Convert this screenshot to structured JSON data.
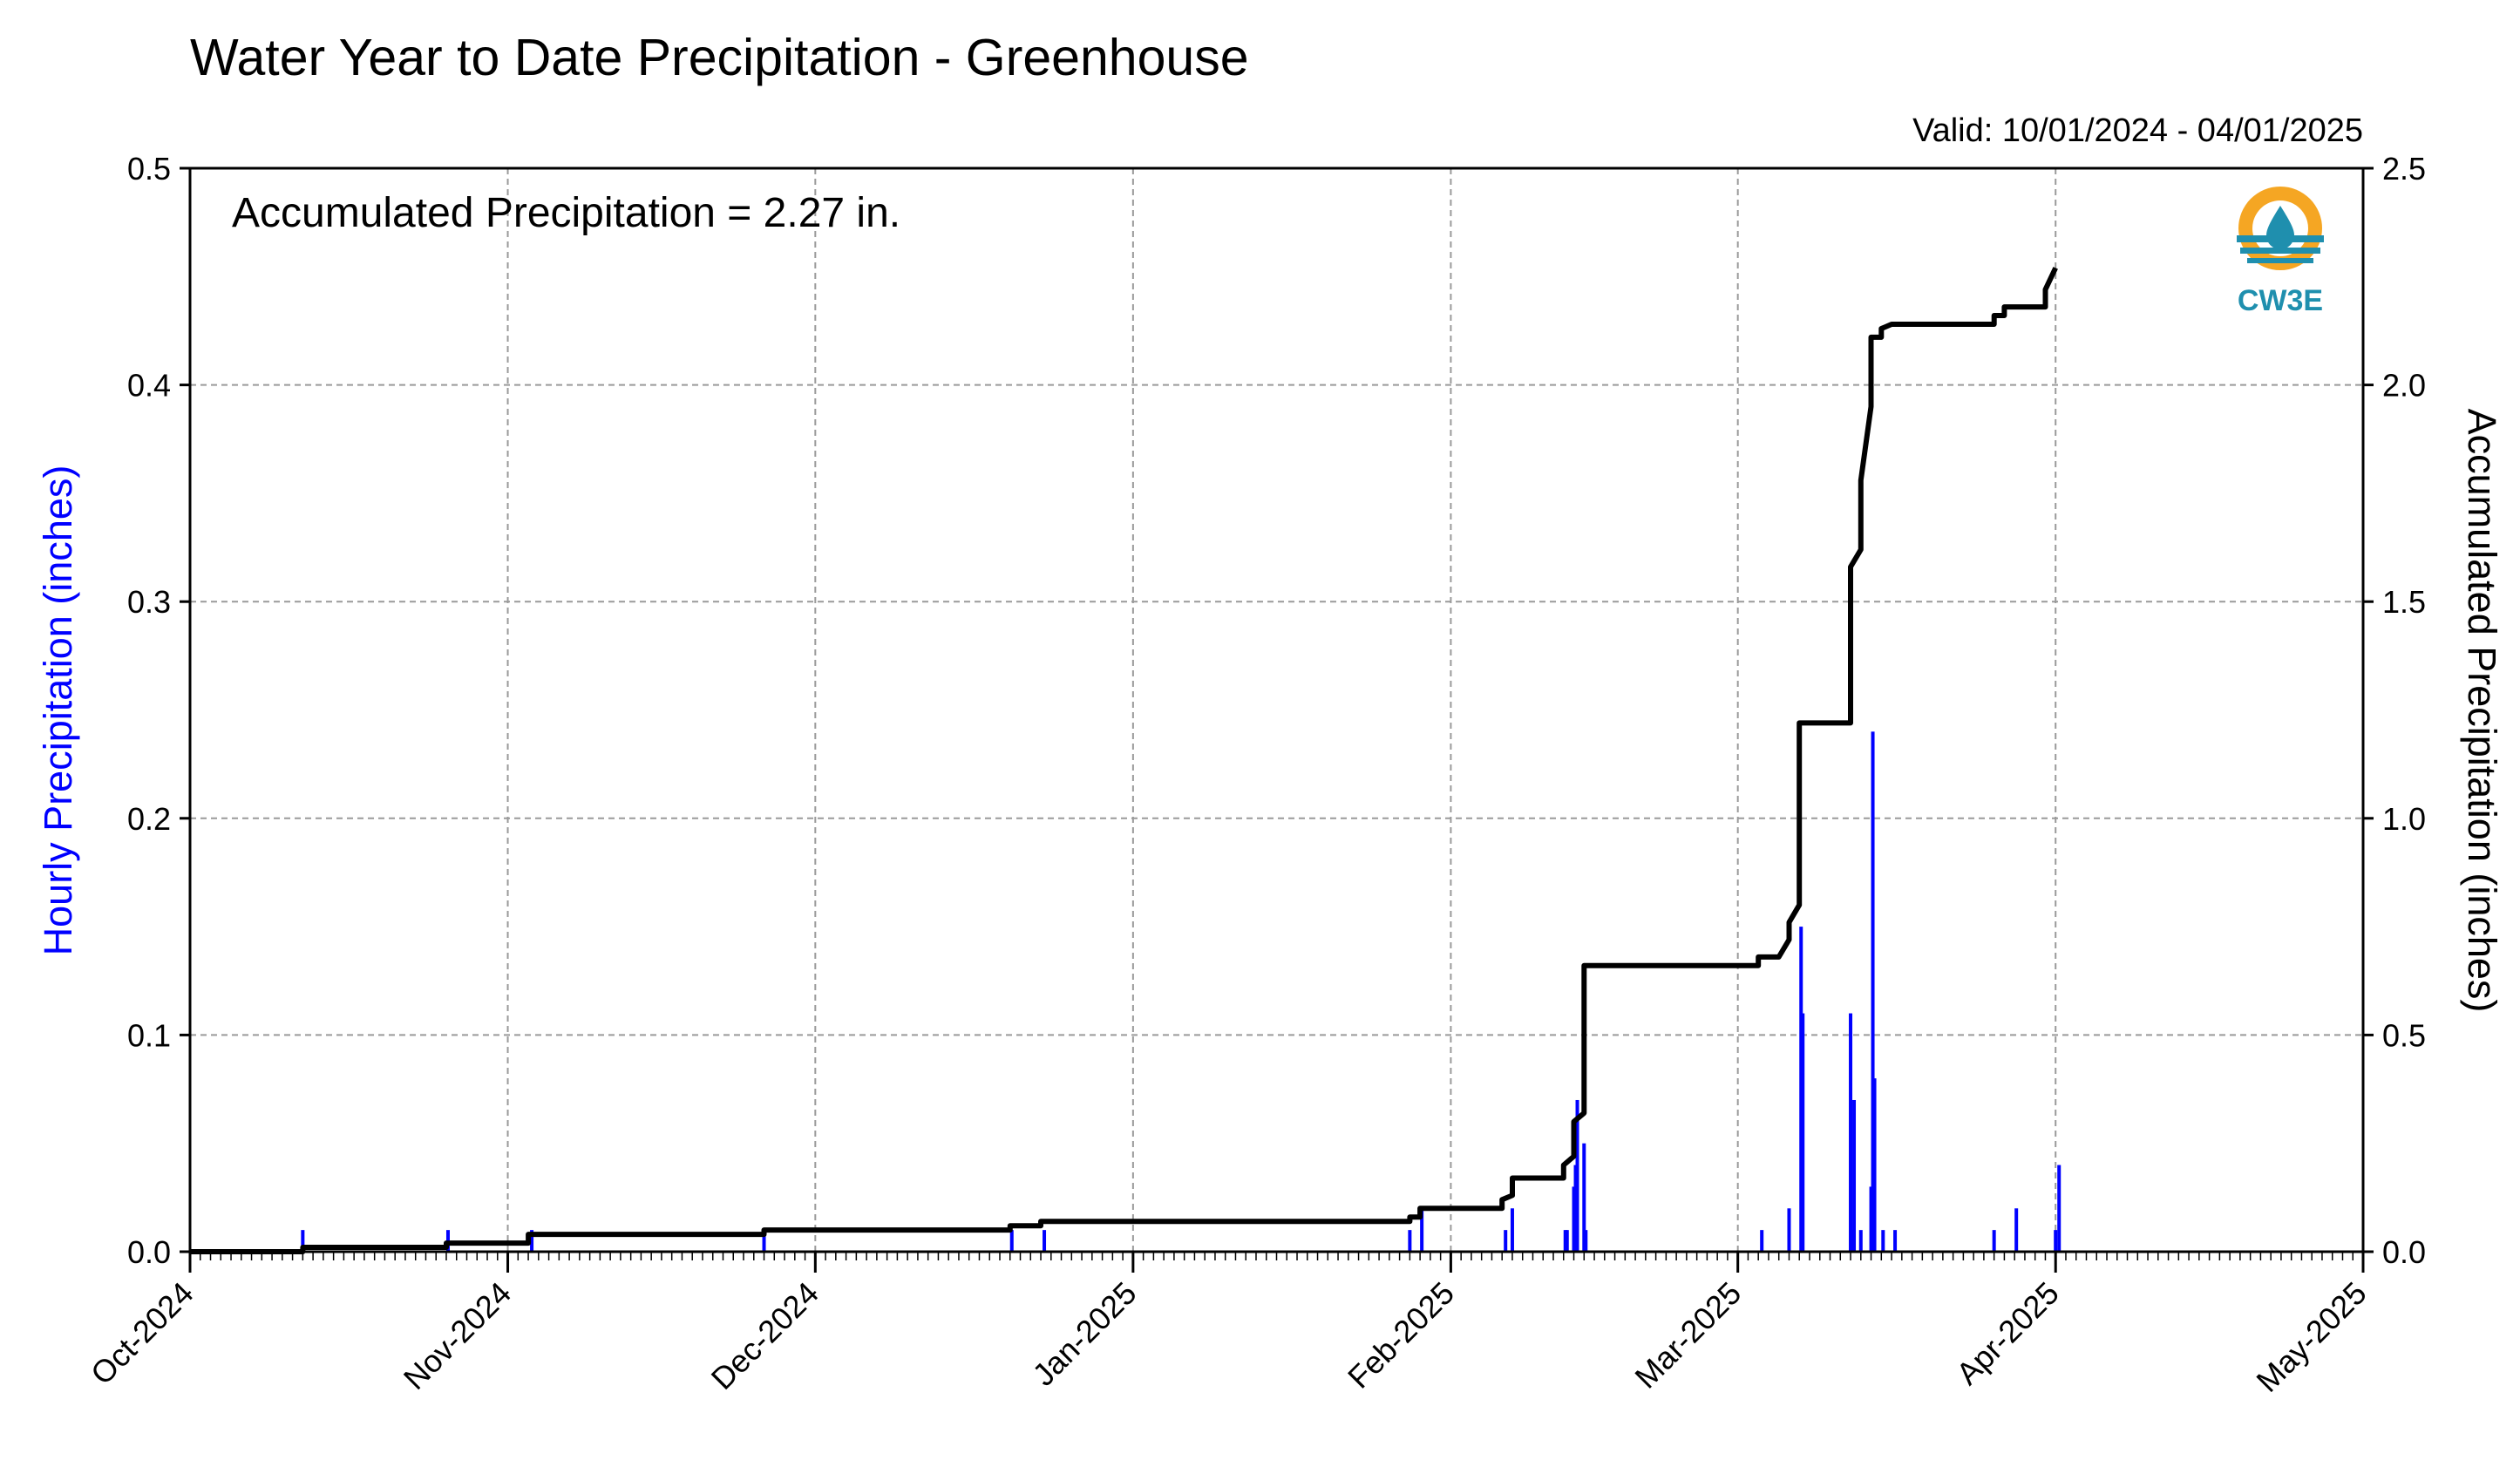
{
  "title": "Water Year to Date Precipitation - Greenhouse",
  "valid_text": "Valid: 10/01/2024 - 04/01/2025",
  "annotation": "Accumulated Precipitation = 2.27 in.",
  "logo": {
    "text": "CW3E",
    "icon": "cw3e-logo-icon",
    "colors": {
      "orange": "#F5A623",
      "teal": "#1F8FAE"
    }
  },
  "colors": {
    "hourly": "#0000FF",
    "accumulated": "#000000",
    "grid": "#9a9a9a"
  },
  "chart_data": {
    "type": "bar",
    "title": "Water Year to Date Precipitation - Greenhouse",
    "xlabel": "",
    "ylabel_left": "Hourly Precipitation (inches)",
    "ylabel_right": "Accumulated Precipitation (inches)",
    "grid": true,
    "x_range": [
      "2024-10-01",
      "2025-05-01"
    ],
    "x_ticks": [
      "Oct-2024",
      "Nov-2024",
      "Dec-2024",
      "Jan-2025",
      "Feb-2025",
      "Mar-2025",
      "Apr-2025",
      "May-2025"
    ],
    "x_tick_dates": [
      "2024-10-01",
      "2024-11-01",
      "2024-12-01",
      "2025-01-01",
      "2025-02-01",
      "2025-03-01",
      "2025-04-01",
      "2025-05-01"
    ],
    "ylim_left": [
      0,
      0.5
    ],
    "yticks_left": [
      "0.0",
      "0.1",
      "0.2",
      "0.3",
      "0.4",
      "0.5"
    ],
    "ylim_right": [
      0,
      2.5
    ],
    "yticks_right": [
      "0.0",
      "0.5",
      "1.0",
      "1.5",
      "2.0",
      "2.5"
    ],
    "series": [
      {
        "name": "Hourly Precipitation (inches)",
        "type": "bar",
        "points": [
          [
            "2024-10-12",
            0.01
          ],
          [
            "2024-10-26",
            0.01
          ],
          [
            "2024-11-03",
            0.01
          ],
          [
            "2024-11-26",
            0.01
          ],
          [
            "2024-12-20",
            0.01
          ],
          [
            "2024-12-23",
            0.01
          ],
          [
            "2025-01-28",
            0.01
          ],
          [
            "2025-01-29",
            0.02
          ],
          [
            "2025-02-06",
            0.01
          ],
          [
            "2025-02-07",
            0.02
          ],
          [
            "2025-02-12",
            0.01
          ],
          [
            "2025-02-12",
            0.01
          ],
          [
            "2025-02-13",
            0.03
          ],
          [
            "2025-02-13",
            0.04
          ],
          [
            "2025-02-13",
            0.07
          ],
          [
            "2025-02-14",
            0.05
          ],
          [
            "2025-02-14",
            0.01
          ],
          [
            "2025-03-03",
            0.01
          ],
          [
            "2025-03-06",
            0.02
          ],
          [
            "2025-03-07",
            0.15
          ],
          [
            "2025-03-07",
            0.11
          ],
          [
            "2025-03-12",
            0.11
          ],
          [
            "2025-03-12",
            0.01
          ],
          [
            "2025-03-12",
            0.07
          ],
          [
            "2025-03-13",
            0.01
          ],
          [
            "2025-03-14",
            0.24
          ],
          [
            "2025-03-14",
            0.08
          ],
          [
            "2025-03-14",
            0.03
          ],
          [
            "2025-03-15",
            0.01
          ],
          [
            "2025-03-16",
            0.01
          ],
          [
            "2025-03-26",
            0.01
          ],
          [
            "2025-03-28",
            0.02
          ],
          [
            "2025-04-01",
            0.04
          ],
          [
            "2025-04-01",
            0.01
          ]
        ]
      },
      {
        "name": "Accumulated Precipitation (inches)",
        "type": "line",
        "points": [
          [
            "2024-10-01",
            0.0
          ],
          [
            "2024-10-12",
            0.0
          ],
          [
            "2024-10-12",
            0.01
          ],
          [
            "2024-10-26",
            0.01
          ],
          [
            "2024-10-26",
            0.02
          ],
          [
            "2024-11-03",
            0.02
          ],
          [
            "2024-11-03",
            0.04
          ],
          [
            "2024-11-26",
            0.04
          ],
          [
            "2024-11-26",
            0.05
          ],
          [
            "2024-12-20",
            0.05
          ],
          [
            "2024-12-20",
            0.06
          ],
          [
            "2024-12-23",
            0.06
          ],
          [
            "2024-12-23",
            0.07
          ],
          [
            "2025-01-28",
            0.07
          ],
          [
            "2025-01-28",
            0.08
          ],
          [
            "2025-01-29",
            0.08
          ],
          [
            "2025-01-29",
            0.1
          ],
          [
            "2025-02-06",
            0.1
          ],
          [
            "2025-02-06",
            0.12
          ],
          [
            "2025-02-07",
            0.13
          ],
          [
            "2025-02-07",
            0.17
          ],
          [
            "2025-02-12",
            0.17
          ],
          [
            "2025-02-12",
            0.2
          ],
          [
            "2025-02-13",
            0.22
          ],
          [
            "2025-02-13",
            0.3
          ],
          [
            "2025-02-14",
            0.32
          ],
          [
            "2025-02-14",
            0.66
          ],
          [
            "2025-03-03",
            0.66
          ],
          [
            "2025-03-03",
            0.68
          ],
          [
            "2025-03-05",
            0.68
          ],
          [
            "2025-03-06",
            0.72
          ],
          [
            "2025-03-06",
            0.76
          ],
          [
            "2025-03-07",
            0.8
          ],
          [
            "2025-03-07",
            1.22
          ],
          [
            "2025-03-12",
            1.22
          ],
          [
            "2025-03-12",
            1.4
          ],
          [
            "2025-03-12",
            1.58
          ],
          [
            "2025-03-13",
            1.62
          ],
          [
            "2025-03-13",
            1.78
          ],
          [
            "2025-03-14",
            1.95
          ],
          [
            "2025-03-14",
            2.11
          ],
          [
            "2025-03-15",
            2.11
          ],
          [
            "2025-03-15",
            2.13
          ],
          [
            "2025-03-16",
            2.14
          ],
          [
            "2025-03-26",
            2.14
          ],
          [
            "2025-03-26",
            2.16
          ],
          [
            "2025-03-27",
            2.16
          ],
          [
            "2025-03-27",
            2.18
          ],
          [
            "2025-03-31",
            2.18
          ],
          [
            "2025-03-31",
            2.22
          ],
          [
            "2025-04-01",
            2.27
          ]
        ]
      }
    ]
  }
}
